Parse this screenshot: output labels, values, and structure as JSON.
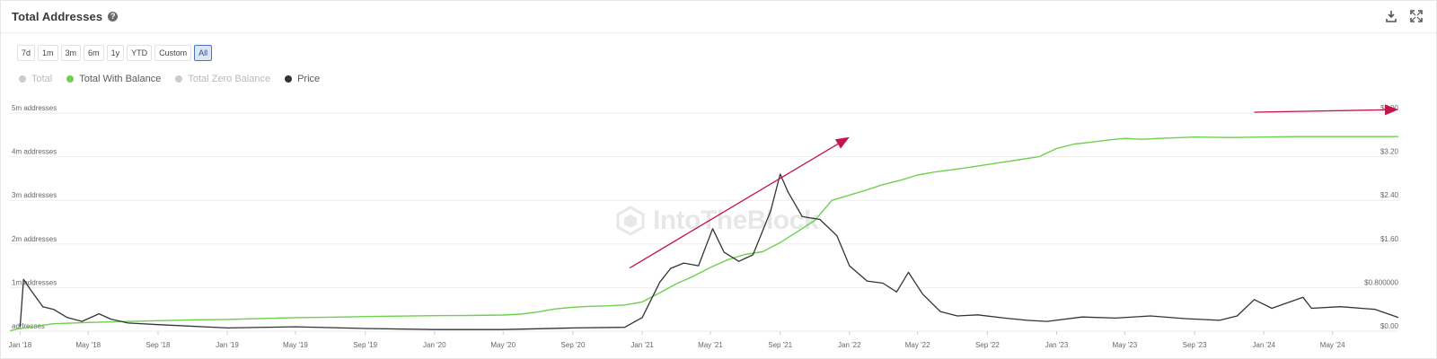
{
  "header": {
    "title": "Total Addresses",
    "help_icon": "question-circle-icon",
    "actions": [
      {
        "name": "download-icon"
      },
      {
        "name": "expand-icon"
      }
    ]
  },
  "ranges": {
    "options": [
      "7d",
      "1m",
      "3m",
      "6m",
      "1y",
      "YTD",
      "Custom",
      "All"
    ],
    "selected": "All"
  },
  "legend": {
    "items": [
      {
        "label": "Total",
        "color": "#cccccc",
        "active": false
      },
      {
        "label": "Total With Balance",
        "color": "#6fcf4e",
        "active": true
      },
      {
        "label": "Total Zero Balance",
        "color": "#cccccc",
        "active": false
      },
      {
        "label": "Price",
        "color": "#333333",
        "active": true
      }
    ]
  },
  "watermark": "IntoTheBlock",
  "chart_data": {
    "type": "line",
    "x_tick_labels": [
      "Jan '18",
      "May '18",
      "Sep '18",
      "Jan '19",
      "May '19",
      "Sep '19",
      "Jan '20",
      "May '20",
      "Sep '20",
      "Jan '21",
      "May '21",
      "Sep '21",
      "Jan '22",
      "May '22",
      "Sep '22",
      "Jan '23",
      "May '23",
      "Sep '23",
      "Jan '24",
      "May '24"
    ],
    "xlim": [
      "2017-12-14",
      "2024-08-25"
    ],
    "y_left": {
      "tick_labels": [
        "5m addresses",
        "4m addresses",
        "3m addresses",
        "2m addresses",
        "1m addresses",
        "addresses"
      ],
      "tick_values": [
        5000000,
        4000000,
        3000000,
        2000000,
        1000000,
        0
      ],
      "ylim": [
        0,
        5000000
      ]
    },
    "y_right": {
      "tick_labels": [
        "$4.00",
        "$3.20",
        "$2.40",
        "$1.60",
        "$0.800000",
        "$0.00"
      ],
      "tick_values": [
        4.0,
        3.2,
        2.4,
        1.6,
        0.8,
        0.0
      ],
      "ylim": [
        0,
        4.0
      ]
    },
    "grid": true,
    "series": [
      {
        "name": "Total With Balance",
        "axis": "left",
        "color": "#6fcf4e",
        "points": [
          [
            "2017-12-14",
            10000
          ],
          [
            "2018-01-01",
            60000
          ],
          [
            "2018-02-01",
            120000
          ],
          [
            "2018-03-01",
            170000
          ],
          [
            "2018-05-01",
            200000
          ],
          [
            "2018-07-01",
            220000
          ],
          [
            "2018-09-01",
            240000
          ],
          [
            "2018-11-01",
            260000
          ],
          [
            "2019-01-01",
            270000
          ],
          [
            "2019-03-01",
            290000
          ],
          [
            "2019-05-01",
            310000
          ],
          [
            "2019-07-01",
            320000
          ],
          [
            "2019-09-01",
            335000
          ],
          [
            "2019-11-01",
            345000
          ],
          [
            "2020-01-01",
            355000
          ],
          [
            "2020-03-01",
            360000
          ],
          [
            "2020-05-01",
            370000
          ],
          [
            "2020-06-01",
            390000
          ],
          [
            "2020-07-01",
            440000
          ],
          [
            "2020-08-01",
            510000
          ],
          [
            "2020-09-01",
            550000
          ],
          [
            "2020-10-01",
            570000
          ],
          [
            "2020-11-01",
            580000
          ],
          [
            "2020-12-01",
            600000
          ],
          [
            "2021-01-01",
            670000
          ],
          [
            "2021-02-01",
            880000
          ],
          [
            "2021-03-01",
            1080000
          ],
          [
            "2021-04-01",
            1260000
          ],
          [
            "2021-05-01",
            1460000
          ],
          [
            "2021-06-01",
            1640000
          ],
          [
            "2021-07-01",
            1760000
          ],
          [
            "2021-08-01",
            1820000
          ],
          [
            "2021-09-01",
            2030000
          ],
          [
            "2021-10-01",
            2280000
          ],
          [
            "2021-11-01",
            2540000
          ],
          [
            "2021-12-01",
            3000000
          ],
          [
            "2022-01-01",
            3120000
          ],
          [
            "2022-02-01",
            3240000
          ],
          [
            "2022-03-01",
            3360000
          ],
          [
            "2022-04-01",
            3460000
          ],
          [
            "2022-05-01",
            3580000
          ],
          [
            "2022-06-01",
            3650000
          ],
          [
            "2022-07-01",
            3700000
          ],
          [
            "2022-08-01",
            3760000
          ],
          [
            "2022-09-01",
            3820000
          ],
          [
            "2022-10-01",
            3880000
          ],
          [
            "2022-11-01",
            3940000
          ],
          [
            "2022-12-01",
            4000000
          ],
          [
            "2023-01-01",
            4190000
          ],
          [
            "2023-02-01",
            4290000
          ],
          [
            "2023-03-01",
            4330000
          ],
          [
            "2023-04-01",
            4380000
          ],
          [
            "2023-05-01",
            4420000
          ],
          [
            "2023-06-01",
            4400000
          ],
          [
            "2023-07-01",
            4420000
          ],
          [
            "2023-09-01",
            4450000
          ],
          [
            "2023-11-01",
            4440000
          ],
          [
            "2024-01-01",
            4450000
          ],
          [
            "2024-03-01",
            4460000
          ],
          [
            "2024-05-01",
            4460000
          ],
          [
            "2024-08-25",
            4460000
          ]
        ]
      },
      {
        "name": "Price",
        "axis": "right",
        "color": "#333333",
        "points": [
          [
            "2018-01-01",
            0.08
          ],
          [
            "2018-01-07",
            0.95
          ],
          [
            "2018-01-20",
            0.75
          ],
          [
            "2018-02-10",
            0.45
          ],
          [
            "2018-03-01",
            0.4
          ],
          [
            "2018-03-25",
            0.25
          ],
          [
            "2018-04-20",
            0.18
          ],
          [
            "2018-05-20",
            0.32
          ],
          [
            "2018-06-10",
            0.22
          ],
          [
            "2018-07-10",
            0.15
          ],
          [
            "2018-09-01",
            0.12
          ],
          [
            "2019-01-01",
            0.06
          ],
          [
            "2019-05-01",
            0.08
          ],
          [
            "2019-09-01",
            0.05
          ],
          [
            "2020-01-01",
            0.03
          ],
          [
            "2020-05-01",
            0.03
          ],
          [
            "2020-09-01",
            0.06
          ],
          [
            "2020-12-01",
            0.07
          ],
          [
            "2021-01-01",
            0.25
          ],
          [
            "2021-02-01",
            0.9
          ],
          [
            "2021-02-20",
            1.15
          ],
          [
            "2021-03-15",
            1.25
          ],
          [
            "2021-04-10",
            1.2
          ],
          [
            "2021-05-05",
            1.88
          ],
          [
            "2021-05-25",
            1.45
          ],
          [
            "2021-06-20",
            1.28
          ],
          [
            "2021-07-15",
            1.4
          ],
          [
            "2021-08-15",
            2.2
          ],
          [
            "2021-09-01",
            2.88
          ],
          [
            "2021-09-15",
            2.55
          ],
          [
            "2021-10-10",
            2.1
          ],
          [
            "2021-11-10",
            2.05
          ],
          [
            "2021-12-10",
            1.75
          ],
          [
            "2022-01-01",
            1.2
          ],
          [
            "2022-02-01",
            0.92
          ],
          [
            "2022-03-01",
            0.88
          ],
          [
            "2022-03-25",
            0.72
          ],
          [
            "2022-04-15",
            1.08
          ],
          [
            "2022-05-10",
            0.68
          ],
          [
            "2022-06-10",
            0.36
          ],
          [
            "2022-07-10",
            0.28
          ],
          [
            "2022-08-15",
            0.3
          ],
          [
            "2022-10-01",
            0.24
          ],
          [
            "2022-11-10",
            0.2
          ],
          [
            "2022-12-15",
            0.18
          ],
          [
            "2023-02-15",
            0.26
          ],
          [
            "2023-04-15",
            0.24
          ],
          [
            "2023-06-15",
            0.28
          ],
          [
            "2023-08-15",
            0.23
          ],
          [
            "2023-10-15",
            0.2
          ],
          [
            "2023-11-15",
            0.28
          ],
          [
            "2023-12-15",
            0.58
          ],
          [
            "2024-01-15",
            0.42
          ],
          [
            "2024-03-10",
            0.62
          ],
          [
            "2024-03-25",
            0.42
          ],
          [
            "2024-05-15",
            0.45
          ],
          [
            "2024-07-15",
            0.4
          ],
          [
            "2024-08-25",
            0.25
          ]
        ]
      }
    ],
    "annotations": [
      {
        "type": "arrow",
        "color": "#c2154a",
        "from": [
          "2020-12-10",
          1450000
        ],
        "to": [
          "2022-01-01",
          4450000
        ]
      },
      {
        "type": "arrow",
        "color": "#c2154a",
        "from": [
          "2023-12-15",
          5020000
        ],
        "to": [
          "2024-08-25",
          5080000
        ]
      }
    ]
  }
}
